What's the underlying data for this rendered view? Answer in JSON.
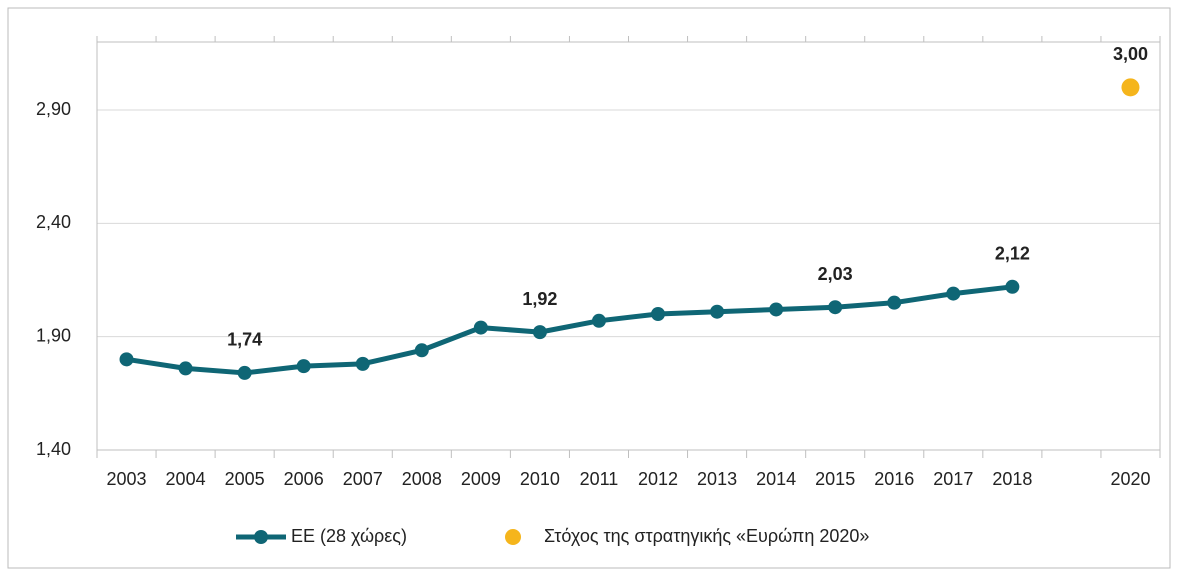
{
  "chart_data": {
    "type": "line",
    "categories": [
      "2003",
      "2004",
      "2005",
      "2006",
      "2007",
      "2008",
      "2009",
      "2010",
      "2011",
      "2012",
      "2013",
      "2014",
      "2015",
      "2016",
      "2017",
      "2018",
      null,
      "2020"
    ],
    "series": [
      {
        "name": "ΕΕ (28 χώρες)",
        "color": "#0f6675",
        "values": [
          1.8,
          1.76,
          1.74,
          1.77,
          1.78,
          1.84,
          1.94,
          1.92,
          1.97,
          2.0,
          2.01,
          2.02,
          2.03,
          2.05,
          2.09,
          2.12,
          null,
          null
        ],
        "value_labels": [
          null,
          null,
          "1,74",
          null,
          null,
          null,
          null,
          "1,92",
          null,
          null,
          null,
          null,
          "2,03",
          null,
          null,
          "2,12",
          null,
          null
        ]
      },
      {
        "name": "Στόχος της στρατηγικής «Ευρώπη 2020»",
        "color": "#f5b51c",
        "values": [
          null,
          null,
          null,
          null,
          null,
          null,
          null,
          null,
          null,
          null,
          null,
          null,
          null,
          null,
          null,
          null,
          null,
          3.0
        ],
        "value_labels": [
          null,
          null,
          null,
          null,
          null,
          null,
          null,
          null,
          null,
          null,
          null,
          null,
          null,
          null,
          null,
          null,
          null,
          "3,00"
        ]
      }
    ],
    "ylim": [
      1.4,
      3.2
    ],
    "yticks": [
      {
        "value": 1.4,
        "label": "1,40"
      },
      {
        "value": 1.9,
        "label": "1,90"
      },
      {
        "value": 2.4,
        "label": "2,40"
      },
      {
        "value": 2.9,
        "label": "2,90"
      }
    ],
    "grid": true,
    "legend": "bottom"
  }
}
